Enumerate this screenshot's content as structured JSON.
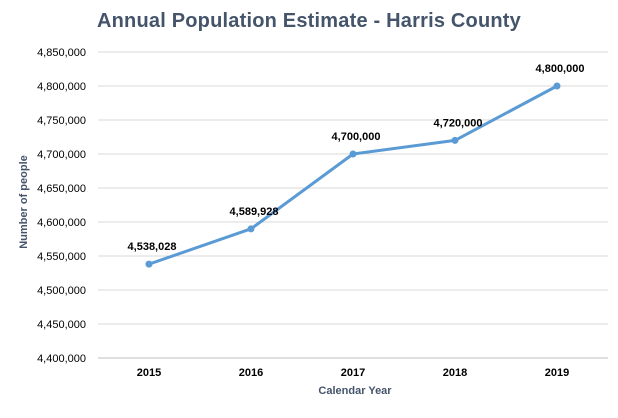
{
  "chart_data": {
    "type": "line",
    "title": "Annual Population Estimate - Harris County",
    "xlabel": "Calendar Year",
    "ylabel": "Number of people",
    "categories": [
      "2015",
      "2016",
      "2017",
      "2018",
      "2019"
    ],
    "series": [
      {
        "values": [
          4538028,
          4589928,
          4700000,
          4720000,
          4800000
        ],
        "data_labels": [
          "4,538,028",
          "4,589,928",
          "4,700,000",
          "4,720,000",
          "4,800,000"
        ],
        "color": "#5b9bd5"
      }
    ],
    "ylim": [
      4400000,
      4850000
    ],
    "y_ticks": [
      4400000,
      4450000,
      4500000,
      4550000,
      4600000,
      4650000,
      4700000,
      4750000,
      4800000,
      4850000
    ],
    "y_tick_labels": [
      "4,400,000",
      "4,450,000",
      "4,500,000",
      "4,550,000",
      "4,600,000",
      "4,650,000",
      "4,700,000",
      "4,750,000",
      "4,800,000",
      "4,850,000"
    ],
    "grid": true,
    "legend": "none"
  }
}
